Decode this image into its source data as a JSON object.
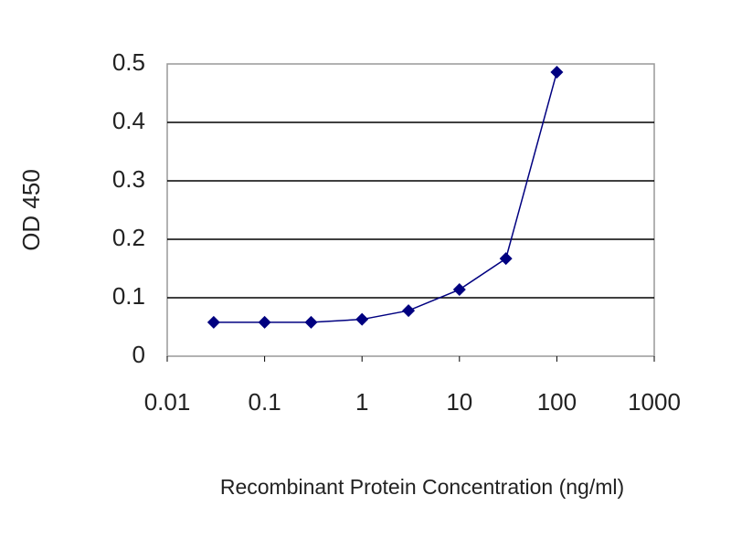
{
  "chart_data": {
    "type": "line",
    "x_label": "Recombinant Protein Concentration (ng/ml)",
    "y_label": "OD 450",
    "x": [
      0.03,
      0.1,
      0.3,
      1,
      3,
      10,
      30,
      100
    ],
    "values": [
      0.058,
      0.058,
      0.058,
      0.063,
      0.078,
      0.114,
      0.167,
      0.486
    ],
    "color": "#000080",
    "xscale": "log",
    "xlim": [
      0.01,
      1000
    ],
    "xticks": [
      0.01,
      0.1,
      1,
      10,
      100,
      1000
    ],
    "ylim": [
      0,
      0.5
    ],
    "yticks": [
      0,
      0.1,
      0.2,
      0.3,
      0.4,
      0.5
    ],
    "grid": true
  }
}
